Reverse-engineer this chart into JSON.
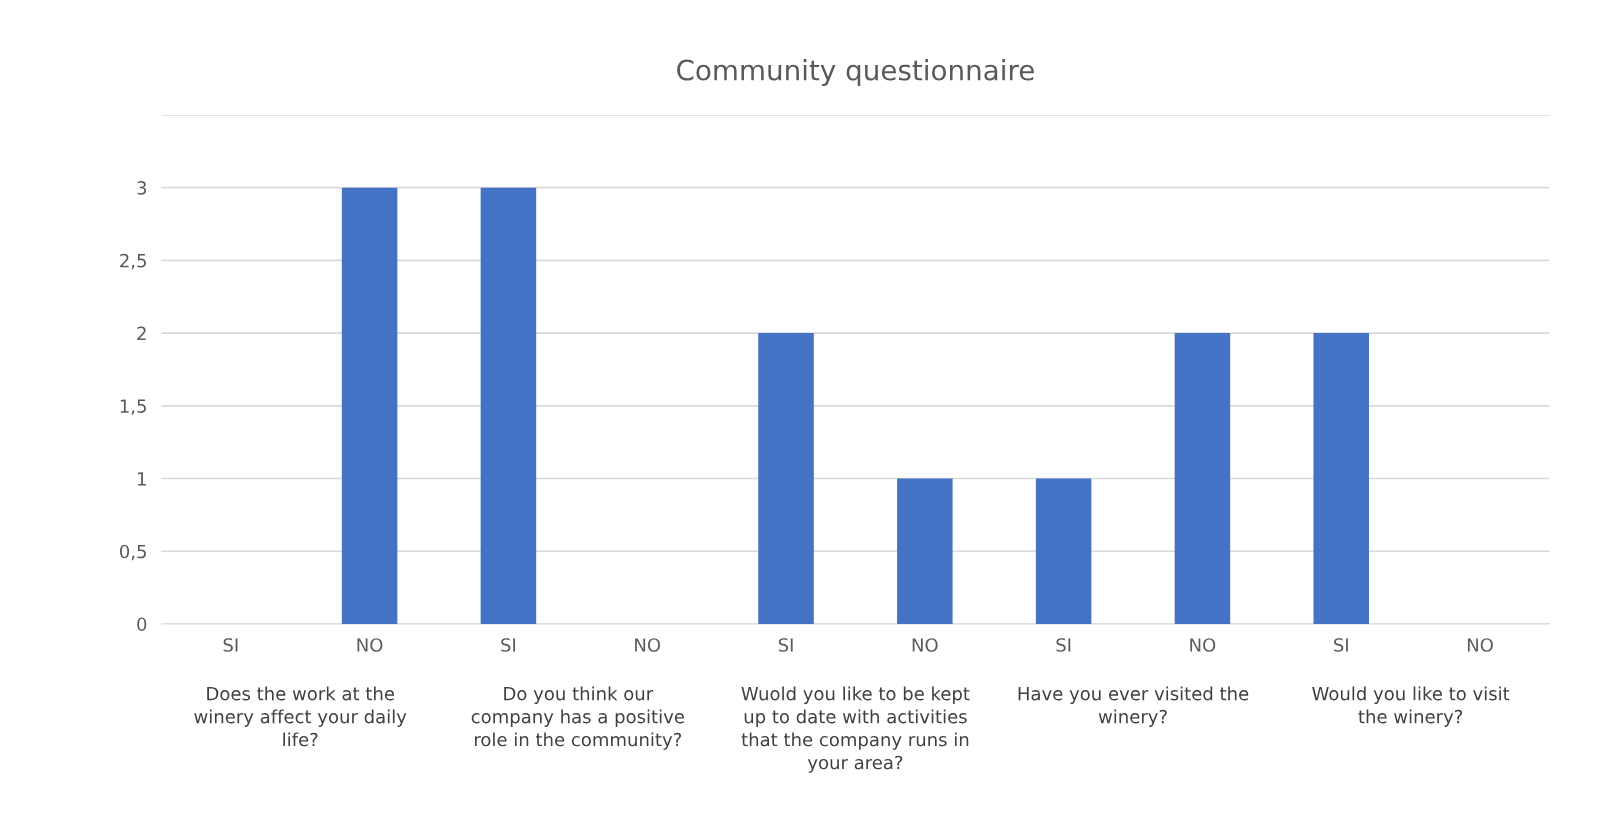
{
  "chart_data": {
    "type": "bar",
    "title": "Community questionnaire",
    "categories": [
      "SI",
      "NO",
      "SI",
      "NO",
      "SI",
      "NO",
      "SI",
      "NO",
      "SI",
      "NO"
    ],
    "values": [
      0,
      3,
      3,
      0,
      2,
      1,
      1,
      2,
      2,
      0
    ],
    "color": "#4472c4",
    "ylim": [
      0,
      3.5
    ],
    "yticks": [
      0,
      {
        "value": 0.5,
        "label": "0,5"
      },
      1,
      {
        "value": 1.5,
        "label": "1,5"
      },
      2,
      {
        "value": 2.5,
        "label": "2,5"
      },
      3,
      {
        "value": 3.5,
        "label": null
      }
    ],
    "grid": "y",
    "annotations": [
      "Does the work at the\nwinery affect your daily\nlife?",
      "Do you think our\ncompany has a positive\nrole in the community?",
      "Wuold you like to be kept\nup to date with activities\nthat the company runs in\nyour area?",
      "Have you ever visited the\nwinery?",
      "Would you like to visit\nthe winery?"
    ]
  }
}
